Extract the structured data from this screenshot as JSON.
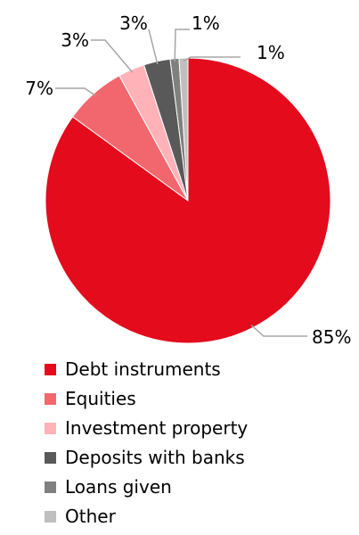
{
  "chart_data": {
    "type": "pie",
    "slices": [
      {
        "label": "Debt instruments",
        "value": 85,
        "display": "85%",
        "color": "#e30b1c"
      },
      {
        "label": "Equities",
        "value": 7,
        "display": "7%",
        "color": "#f2676e"
      },
      {
        "label": "Investment property",
        "value": 3,
        "display": "3%",
        "color": "#ffb3b8"
      },
      {
        "label": "Deposits with banks",
        "value": 3,
        "display": "3%",
        "color": "#595959"
      },
      {
        "label": "Loans given",
        "value": 1,
        "display": "1%",
        "color": "#808080"
      },
      {
        "label": "Other",
        "value": 1,
        "display": "1%",
        "color": "#bfbfbf"
      }
    ],
    "start": "12 o'clock",
    "direction": "clockwise",
    "legend_position": "bottom"
  }
}
